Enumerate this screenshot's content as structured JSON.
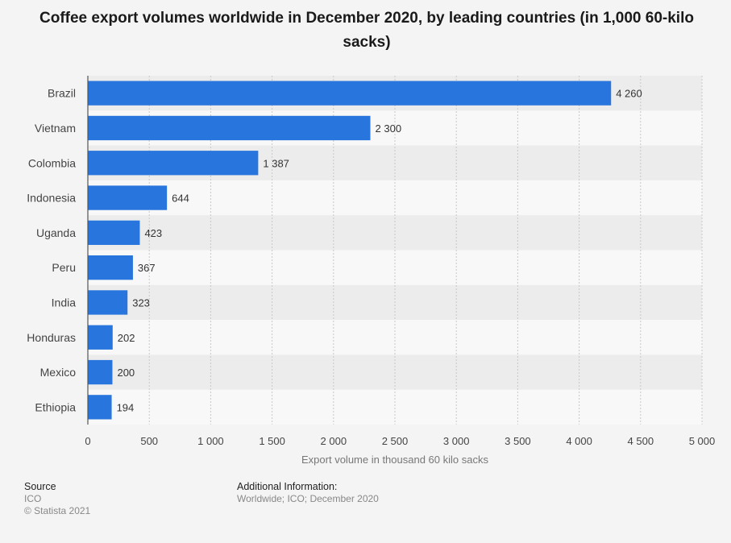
{
  "chart_data": {
    "type": "bar",
    "orientation": "horizontal",
    "title": "Coffee export volumes worldwide in December 2020, by leading countries (in 1,000 60-kilo sacks)",
    "categories": [
      "Brazil",
      "Vietnam",
      "Colombia",
      "Indonesia",
      "Uganda",
      "Peru",
      "India",
      "Honduras",
      "Mexico",
      "Ethiopia"
    ],
    "values": [
      4260,
      2300,
      1387,
      644,
      423,
      367,
      323,
      202,
      200,
      194
    ],
    "value_labels": [
      "4 260",
      "2 300",
      "1 387",
      "644",
      "423",
      "367",
      "323",
      "202",
      "200",
      "194"
    ],
    "xlabel": "Export volume in thousand 60 kilo sacks",
    "ylabel": "",
    "xlim": [
      0,
      5000
    ],
    "ticks": [
      0,
      500,
      1000,
      1500,
      2000,
      2500,
      3000,
      3500,
      4000,
      4500,
      5000
    ],
    "tick_labels": [
      "0",
      "500",
      "1 000",
      "1 500",
      "2 000",
      "2 500",
      "3 000",
      "3 500",
      "4 000",
      "4 500",
      "5 000"
    ],
    "grid": true,
    "bar_color": "#2876dd"
  },
  "footer": {
    "source_label": "Source",
    "source_value": "ICO",
    "copyright": "© Statista 2021",
    "info_label": "Additional Information:",
    "info_value": "Worldwide; ICO; December 2020"
  }
}
